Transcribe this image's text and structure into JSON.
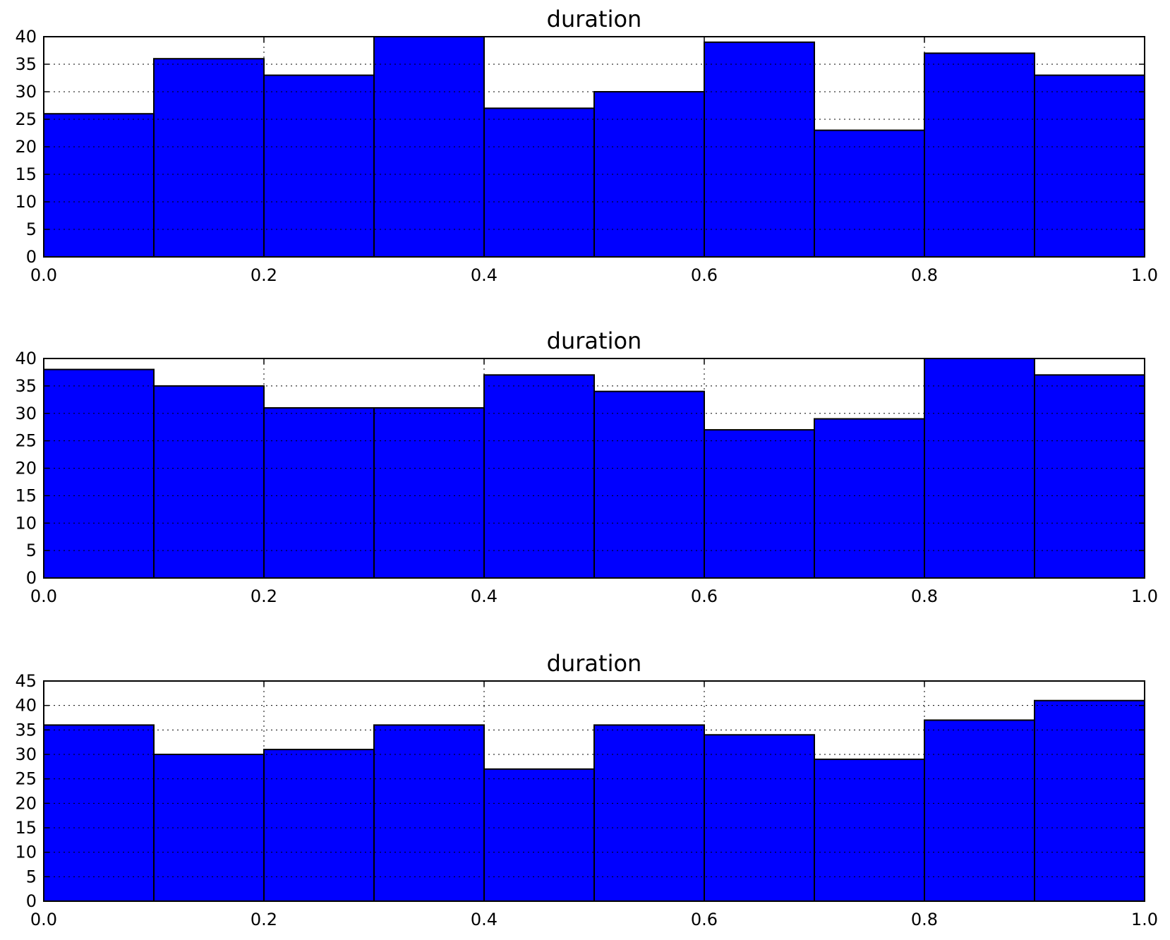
{
  "colors": {
    "bar_fill": "#0000ff",
    "bar_edge": "#000000",
    "grid": "#000000",
    "background": "#ffffff"
  },
  "chart_data": [
    {
      "type": "bar",
      "title": "duration",
      "xlabel": "",
      "ylabel": "",
      "bin_edges": [
        0.0,
        0.1,
        0.2,
        0.3,
        0.4,
        0.5,
        0.6,
        0.7,
        0.8,
        0.9,
        1.0
      ],
      "values": [
        26,
        36,
        33,
        40,
        27,
        30,
        39,
        23,
        37,
        33
      ],
      "xlim": [
        0.0,
        1.0
      ],
      "ylim": [
        0,
        40
      ],
      "xticks": [
        "0.0",
        "0.2",
        "0.4",
        "0.6",
        "0.8",
        "1.0"
      ],
      "yticks": [
        "0",
        "5",
        "10",
        "15",
        "20",
        "25",
        "30",
        "35",
        "40"
      ],
      "grid": true,
      "legend": "none"
    },
    {
      "type": "bar",
      "title": "duration",
      "xlabel": "",
      "ylabel": "",
      "bin_edges": [
        0.0,
        0.1,
        0.2,
        0.3,
        0.4,
        0.5,
        0.6,
        0.7,
        0.8,
        0.9,
        1.0
      ],
      "values": [
        38,
        35,
        31,
        31,
        37,
        34,
        27,
        29,
        40,
        37
      ],
      "xlim": [
        0.0,
        1.0
      ],
      "ylim": [
        0,
        40
      ],
      "xticks": [
        "0.0",
        "0.2",
        "0.4",
        "0.6",
        "0.8",
        "1.0"
      ],
      "yticks": [
        "0",
        "5",
        "10",
        "15",
        "20",
        "25",
        "30",
        "35",
        "40"
      ],
      "grid": true,
      "legend": "none"
    },
    {
      "type": "bar",
      "title": "duration",
      "xlabel": "",
      "ylabel": "",
      "bin_edges": [
        0.0,
        0.1,
        0.2,
        0.3,
        0.4,
        0.5,
        0.6,
        0.7,
        0.8,
        0.9,
        1.0
      ],
      "values": [
        36,
        30,
        31,
        36,
        27,
        36,
        34,
        29,
        37,
        41
      ],
      "xlim": [
        0.0,
        1.0
      ],
      "ylim": [
        0,
        45
      ],
      "xticks": [
        "0.0",
        "0.2",
        "0.4",
        "0.6",
        "0.8",
        "1.0"
      ],
      "yticks": [
        "0",
        "5",
        "10",
        "15",
        "20",
        "25",
        "30",
        "35",
        "40",
        "45"
      ],
      "grid": true,
      "legend": "none"
    }
  ]
}
